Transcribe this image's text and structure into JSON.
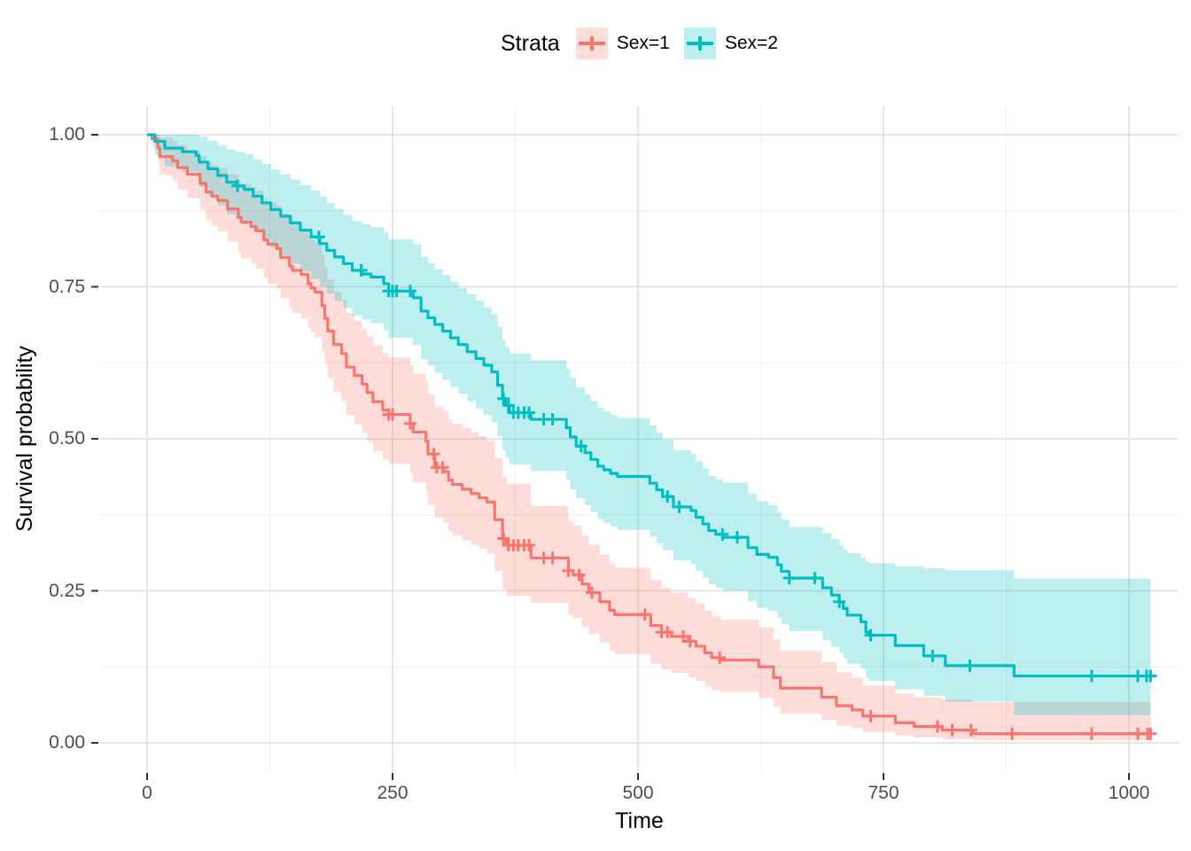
{
  "chart_data": {
    "type": "line",
    "subtype": "kaplan-meier-step-with-confidence-bands",
    "xlabel": "Time",
    "ylabel": "Survival probability",
    "x_end": 1022,
    "x_ticks": {
      "values": [
        0,
        250,
        500,
        750,
        1000
      ],
      "labels": [
        "0",
        "250",
        "500",
        "750",
        "1000"
      ]
    },
    "y_ticks": {
      "values": [
        0,
        0.25,
        0.5,
        0.75,
        1
      ],
      "labels": [
        "0.00",
        "0.25",
        "0.50",
        "0.75",
        "1.00"
      ]
    },
    "grid": {
      "x_major": [
        0,
        250,
        500,
        750,
        1000
      ],
      "x_minor": [
        125,
        375,
        625,
        875
      ],
      "y_major": [
        0,
        0.25,
        0.5,
        0.75,
        1
      ],
      "y_minor": [
        0.125,
        0.375,
        0.625,
        0.875
      ]
    },
    "legend": {
      "title": "Strata",
      "position": "top",
      "entries": [
        {
          "label": "Sex=1",
          "color": "#F8766D"
        },
        {
          "label": "Sex=2",
          "color": "#00BFC4"
        }
      ]
    },
    "colors": {
      "sex1": "#F8766D",
      "sex2": "#00BFC4",
      "band_opacity": 0.26,
      "grid_major": "#E3E3E3",
      "grid_minor": "#F1F1F1",
      "tick_text": "#4D4D4D",
      "tick_mark": "#333333"
    },
    "series": [
      {
        "name": "Sex=1",
        "color": "#F8766D",
        "steps": [
          [
            0,
            1,
            1,
            1
          ],
          [
            5,
            0.993,
            0.979,
            1
          ],
          [
            11,
            0.978,
            0.955,
            1
          ],
          [
            13,
            0.964,
            0.934,
            0.995
          ],
          [
            26,
            0.957,
            0.925,
            0.99
          ],
          [
            31,
            0.946,
            0.91,
            0.983
          ],
          [
            41,
            0.935,
            0.896,
            0.975
          ],
          [
            54,
            0.92,
            0.877,
            0.965
          ],
          [
            60,
            0.906,
            0.859,
            0.955
          ],
          [
            66,
            0.899,
            0.85,
            0.95
          ],
          [
            72,
            0.892,
            0.841,
            0.945
          ],
          [
            82,
            0.878,
            0.824,
            0.935
          ],
          [
            93,
            0.864,
            0.806,
            0.925
          ],
          [
            96,
            0.856,
            0.797,
            0.919
          ],
          [
            106,
            0.849,
            0.789,
            0.914
          ],
          [
            111,
            0.842,
            0.78,
            0.908
          ],
          [
            119,
            0.827,
            0.764,
            0.896
          ],
          [
            123,
            0.82,
            0.755,
            0.889
          ],
          [
            132,
            0.813,
            0.747,
            0.883
          ],
          [
            136,
            0.798,
            0.731,
            0.871
          ],
          [
            145,
            0.784,
            0.715,
            0.859
          ],
          [
            148,
            0.777,
            0.707,
            0.853
          ],
          [
            157,
            0.77,
            0.699,
            0.847
          ],
          [
            164,
            0.755,
            0.683,
            0.834
          ],
          [
            167,
            0.748,
            0.675,
            0.828
          ],
          [
            171,
            0.741,
            0.667,
            0.822
          ],
          [
            178,
            0.719,
            0.645,
            0.802
          ],
          [
            181,
            0.698,
            0.622,
            0.782
          ],
          [
            184,
            0.677,
            0.6,
            0.762
          ],
          [
            190,
            0.655,
            0.577,
            0.742
          ],
          [
            198,
            0.64,
            0.562,
            0.728
          ],
          [
            203,
            0.618,
            0.539,
            0.707
          ],
          [
            211,
            0.604,
            0.524,
            0.694
          ],
          [
            219,
            0.59,
            0.51,
            0.681
          ],
          [
            224,
            0.576,
            0.495,
            0.668
          ],
          [
            230,
            0.561,
            0.48,
            0.654
          ],
          [
            240,
            0.547,
            0.466,
            0.641
          ],
          [
            246,
            0.54,
            0.459,
            0.634
          ],
          [
            268,
            0.525,
            0.443,
            0.621
          ],
          [
            271,
            0.511,
            0.428,
            0.607
          ],
          [
            284,
            0.496,
            0.413,
            0.594
          ],
          [
            286,
            0.475,
            0.391,
            0.573
          ],
          [
            293,
            0.453,
            0.37,
            0.553
          ],
          [
            302,
            0.446,
            0.362,
            0.545
          ],
          [
            307,
            0.432,
            0.348,
            0.532
          ],
          [
            311,
            0.425,
            0.341,
            0.525
          ],
          [
            321,
            0.417,
            0.333,
            0.518
          ],
          [
            330,
            0.41,
            0.326,
            0.511
          ],
          [
            338,
            0.403,
            0.319,
            0.504
          ],
          [
            346,
            0.396,
            0.311,
            0.497
          ],
          [
            354,
            0.367,
            0.283,
            0.468
          ],
          [
            362,
            0.336,
            0.252,
            0.437
          ],
          [
            366,
            0.325,
            0.242,
            0.426
          ],
          [
            391,
            0.304,
            0.23,
            0.39
          ],
          [
            429,
            0.283,
            0.211,
            0.364
          ],
          [
            434,
            0.276,
            0.205,
            0.357
          ],
          [
            443,
            0.261,
            0.191,
            0.341
          ],
          [
            450,
            0.247,
            0.179,
            0.326
          ],
          [
            461,
            0.232,
            0.165,
            0.31
          ],
          [
            471,
            0.218,
            0.152,
            0.295
          ],
          [
            476,
            0.211,
            0.146,
            0.288
          ],
          [
            513,
            0.193,
            0.13,
            0.268
          ],
          [
            524,
            0.182,
            0.121,
            0.255
          ],
          [
            534,
            0.175,
            0.115,
            0.247
          ],
          [
            551,
            0.167,
            0.108,
            0.238
          ],
          [
            559,
            0.159,
            0.102,
            0.229
          ],
          [
            568,
            0.148,
            0.093,
            0.217
          ],
          [
            575,
            0.14,
            0.087,
            0.208
          ],
          [
            584,
            0.136,
            0.084,
            0.203
          ],
          [
            623,
            0.125,
            0.074,
            0.19
          ],
          [
            638,
            0.107,
            0.06,
            0.17
          ],
          [
            645,
            0.09,
            0.048,
            0.151
          ],
          [
            687,
            0.075,
            0.038,
            0.133
          ],
          [
            702,
            0.061,
            0.028,
            0.116
          ],
          [
            718,
            0.054,
            0.024,
            0.107
          ],
          [
            729,
            0.044,
            0.018,
            0.094
          ],
          [
            762,
            0.033,
            0.012,
            0.081
          ],
          [
            781,
            0.027,
            0.009,
            0.075
          ],
          [
            810,
            0.021,
            0.006,
            0.071
          ],
          [
            841,
            0.015,
            0.004,
            0.067
          ]
        ],
        "censor_times": [
          246,
          250,
          268,
          292,
          295,
          301,
          363,
          368,
          373,
          378,
          384,
          389,
          404,
          413,
          429,
          440,
          453,
          507,
          524,
          530,
          546,
          553,
          583,
          737,
          805,
          820,
          839,
          881,
          962,
          1009,
          1019,
          1022
        ]
      },
      {
        "name": "Sex=2",
        "color": "#00BFC4",
        "steps": [
          [
            0,
            1,
            1,
            1
          ],
          [
            8,
            0.989,
            0.967,
            1
          ],
          [
            18,
            0.978,
            0.948,
            1
          ],
          [
            36,
            0.972,
            0.939,
            1
          ],
          [
            50,
            0.966,
            0.93,
            1
          ],
          [
            53,
            0.955,
            0.914,
            0.997
          ],
          [
            62,
            0.944,
            0.899,
            0.99
          ],
          [
            72,
            0.933,
            0.884,
            0.983
          ],
          [
            81,
            0.922,
            0.869,
            0.976
          ],
          [
            90,
            0.916,
            0.861,
            0.972
          ],
          [
            99,
            0.91,
            0.854,
            0.968
          ],
          [
            108,
            0.899,
            0.84,
            0.96
          ],
          [
            117,
            0.888,
            0.827,
            0.952
          ],
          [
            126,
            0.877,
            0.814,
            0.943
          ],
          [
            136,
            0.866,
            0.801,
            0.935
          ],
          [
            146,
            0.855,
            0.788,
            0.926
          ],
          [
            156,
            0.843,
            0.775,
            0.917
          ],
          [
            167,
            0.832,
            0.763,
            0.908
          ],
          [
            176,
            0.821,
            0.751,
            0.898
          ],
          [
            183,
            0.81,
            0.739,
            0.888
          ],
          [
            191,
            0.799,
            0.727,
            0.878
          ],
          [
            200,
            0.788,
            0.715,
            0.868
          ],
          [
            209,
            0.777,
            0.703,
            0.858
          ],
          [
            219,
            0.771,
            0.696,
            0.853
          ],
          [
            228,
            0.766,
            0.69,
            0.848
          ],
          [
            241,
            0.755,
            0.678,
            0.839
          ],
          [
            246,
            0.743,
            0.666,
            0.828
          ],
          [
            271,
            0.732,
            0.654,
            0.82
          ],
          [
            279,
            0.71,
            0.631,
            0.799
          ],
          [
            286,
            0.699,
            0.62,
            0.789
          ],
          [
            293,
            0.688,
            0.608,
            0.779
          ],
          [
            301,
            0.677,
            0.597,
            0.769
          ],
          [
            309,
            0.666,
            0.585,
            0.759
          ],
          [
            317,
            0.655,
            0.574,
            0.748
          ],
          [
            326,
            0.643,
            0.562,
            0.738
          ],
          [
            335,
            0.632,
            0.55,
            0.727
          ],
          [
            343,
            0.621,
            0.539,
            0.716
          ],
          [
            351,
            0.61,
            0.527,
            0.705
          ],
          [
            357,
            0.588,
            0.504,
            0.684
          ],
          [
            362,
            0.566,
            0.481,
            0.662
          ],
          [
            365,
            0.555,
            0.47,
            0.651
          ],
          [
            369,
            0.543,
            0.458,
            0.64
          ],
          [
            391,
            0.532,
            0.447,
            0.629
          ],
          [
            427,
            0.518,
            0.433,
            0.615
          ],
          [
            431,
            0.503,
            0.417,
            0.6
          ],
          [
            437,
            0.488,
            0.402,
            0.585
          ],
          [
            446,
            0.477,
            0.391,
            0.573
          ],
          [
            452,
            0.466,
            0.38,
            0.562
          ],
          [
            459,
            0.455,
            0.368,
            0.551
          ],
          [
            465,
            0.449,
            0.362,
            0.545
          ],
          [
            472,
            0.443,
            0.356,
            0.539
          ],
          [
            479,
            0.438,
            0.35,
            0.534
          ],
          [
            512,
            0.427,
            0.339,
            0.522
          ],
          [
            519,
            0.416,
            0.328,
            0.51
          ],
          [
            525,
            0.405,
            0.317,
            0.499
          ],
          [
            536,
            0.388,
            0.3,
            0.481
          ],
          [
            554,
            0.382,
            0.294,
            0.475
          ],
          [
            559,
            0.371,
            0.283,
            0.463
          ],
          [
            566,
            0.36,
            0.272,
            0.451
          ],
          [
            572,
            0.349,
            0.261,
            0.439
          ],
          [
            579,
            0.343,
            0.255,
            0.433
          ],
          [
            587,
            0.338,
            0.25,
            0.428
          ],
          [
            612,
            0.321,
            0.233,
            0.409
          ],
          [
            621,
            0.31,
            0.222,
            0.397
          ],
          [
            633,
            0.305,
            0.217,
            0.391
          ],
          [
            642,
            0.293,
            0.206,
            0.379
          ],
          [
            646,
            0.282,
            0.195,
            0.367
          ],
          [
            654,
            0.271,
            0.184,
            0.355
          ],
          [
            688,
            0.255,
            0.169,
            0.345
          ],
          [
            697,
            0.243,
            0.158,
            0.335
          ],
          [
            705,
            0.232,
            0.148,
            0.325
          ],
          [
            709,
            0.221,
            0.139,
            0.318
          ],
          [
            713,
            0.21,
            0.13,
            0.312
          ],
          [
            727,
            0.199,
            0.122,
            0.305
          ],
          [
            732,
            0.182,
            0.106,
            0.298
          ],
          [
            736,
            0.177,
            0.102,
            0.295
          ],
          [
            762,
            0.16,
            0.088,
            0.29
          ],
          [
            791,
            0.143,
            0.077,
            0.287
          ],
          [
            813,
            0.127,
            0.068,
            0.284
          ],
          [
            883,
            0.11,
            0.046,
            0.27
          ]
        ],
        "censor_times": [
          92,
          175,
          218,
          246,
          250,
          254,
          268,
          363,
          368,
          373,
          378,
          384,
          389,
          404,
          413,
          442,
          530,
          542,
          586,
          601,
          654,
          680,
          705,
          737,
          800,
          838,
          962,
          1009,
          1018,
          1022
        ]
      }
    ]
  }
}
